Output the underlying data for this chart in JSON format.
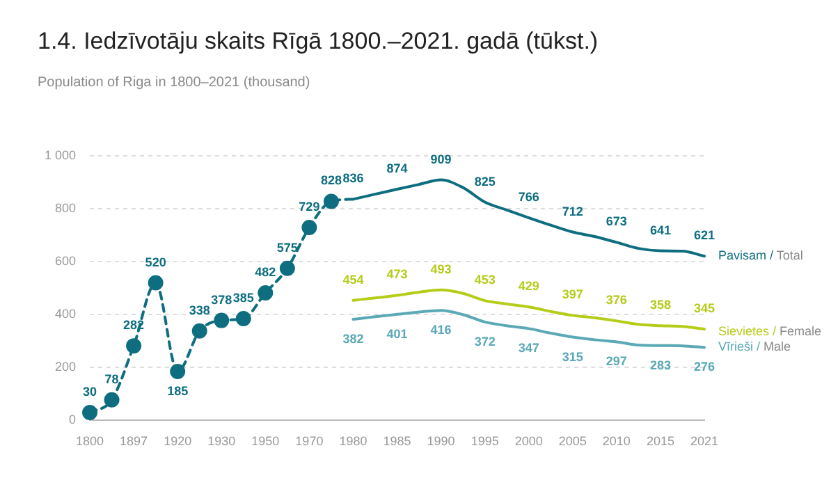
{
  "chart_data": {
    "type": "line",
    "title": "1.4. Iedzīvotāju skaits Rīgā 1800.–2021. gadā (tūkst.)",
    "subtitle": "Population of Riga in 1800–2021 (thousand)",
    "categories": [
      "1800",
      null,
      "1897",
      null,
      "1920",
      null,
      "1930",
      null,
      "1950",
      null,
      "1970",
      null,
      "1980",
      null,
      "1985",
      null,
      "1990",
      null,
      "1995",
      null,
      "2000",
      null,
      "2005",
      null,
      "2010",
      null,
      "2015",
      null,
      "2021"
    ],
    "series": [
      {
        "color": "#0e6e80",
        "line_style": "dashed",
        "marker": "circle",
        "values": [
          30,
          78,
          282,
          520,
          185,
          338,
          378,
          385,
          482,
          575,
          729,
          828,
          836,
          null,
          null,
          null,
          null,
          null,
          null,
          null,
          null,
          null,
          null,
          null,
          null,
          null,
          null,
          null,
          null
        ],
        "value_labels": [
          "30",
          "78",
          "282",
          "520",
          "185",
          "338",
          "378",
          "385",
          "482",
          "575",
          "729",
          "828",
          null,
          null,
          null,
          null,
          null,
          null,
          null,
          null,
          null,
          null,
          null,
          null,
          null,
          null,
          null,
          null,
          null
        ]
      },
      {
        "name": "Pavisam / Total",
        "color": "#0e6e80",
        "line_style": "solid",
        "marker": "none",
        "values": [
          null,
          null,
          null,
          null,
          null,
          null,
          null,
          null,
          null,
          null,
          null,
          null,
          836,
          855,
          874,
          892,
          909,
          880,
          825,
          795,
          766,
          738,
          712,
          695,
          673,
          650,
          641,
          640,
          621
        ],
        "value_labels": [
          null,
          null,
          null,
          null,
          null,
          null,
          null,
          null,
          null,
          null,
          null,
          null,
          "836",
          null,
          "874",
          null,
          "909",
          null,
          "825",
          null,
          "766",
          null,
          "712",
          null,
          "673",
          null,
          "641",
          null,
          "621"
        ]
      },
      {
        "name": "Sievietes / Female",
        "color": "#b5cc18",
        "line_style": "solid",
        "marker": "none",
        "values": [
          null,
          null,
          null,
          null,
          null,
          null,
          null,
          null,
          null,
          null,
          null,
          null,
          454,
          463,
          473,
          485,
          493,
          480,
          453,
          440,
          429,
          412,
          397,
          388,
          376,
          363,
          358,
          355,
          345
        ],
        "value_labels": [
          null,
          null,
          null,
          null,
          null,
          null,
          null,
          null,
          null,
          null,
          null,
          null,
          "454",
          null,
          "473",
          null,
          "493",
          null,
          "453",
          null,
          "429",
          null,
          "397",
          null,
          "376",
          null,
          "358",
          null,
          "345"
        ]
      },
      {
        "name": "Vīrieši / Male",
        "color": "#5aa9b5",
        "line_style": "solid",
        "marker": "none",
        "values": [
          null,
          null,
          null,
          null,
          null,
          null,
          null,
          null,
          null,
          null,
          null,
          null,
          382,
          392,
          401,
          410,
          416,
          400,
          372,
          358,
          347,
          330,
          315,
          305,
          297,
          285,
          283,
          282,
          276
        ],
        "value_labels": [
          null,
          null,
          null,
          null,
          null,
          null,
          null,
          null,
          null,
          null,
          null,
          null,
          "382",
          null,
          "401",
          null,
          "416",
          null,
          "372",
          null,
          "347",
          null,
          "315",
          null,
          "297",
          null,
          "283",
          null,
          "276"
        ]
      }
    ],
    "ylim": [
      0,
      1000
    ],
    "yticks": [
      0,
      200,
      400,
      600,
      800,
      {
        "value": 1000,
        "label": "1 000"
      }
    ],
    "grid": "y",
    "legend": false
  }
}
